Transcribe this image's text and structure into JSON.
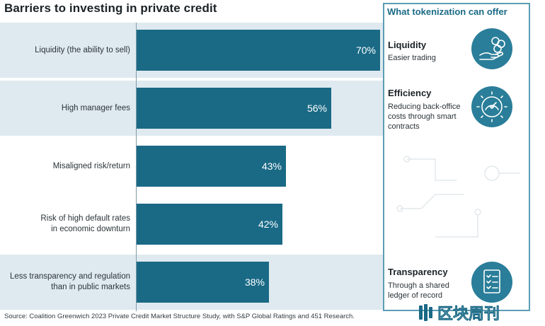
{
  "title": "Barriers to investing in private credit",
  "chart_data": {
    "type": "bar",
    "orientation": "horizontal",
    "title": "Barriers to investing in private credit",
    "categories": [
      [
        "Liquidity (the ability to sell)"
      ],
      [
        "High manager fees"
      ],
      [
        "Misaligned risk/return"
      ],
      [
        "Risk of high default rates",
        "in economic downturn"
      ],
      [
        "Less transparency and regulation",
        "than in public markets"
      ]
    ],
    "values": [
      70,
      56,
      43,
      42,
      38
    ],
    "value_labels": [
      "70%",
      "56%",
      "43%",
      "42%",
      "38%"
    ],
    "highlighted": [
      true,
      true,
      false,
      false,
      true
    ],
    "xlim": [
      0,
      70
    ],
    "grid": false,
    "bar_color": "#1a6a86",
    "band_color": "#dfeaf0"
  },
  "panel": {
    "title": "What tokenization can offer",
    "items": [
      {
        "heading": "Liquidity",
        "desc": [
          "Easier trading"
        ],
        "icon": "hand-coins-icon"
      },
      {
        "heading": "Efficiency",
        "desc": [
          "Reducing back-office",
          "costs through smart",
          "contracts"
        ],
        "icon": "gear-gauge-icon"
      },
      {
        "heading": "Transparency",
        "desc": [
          "Through a shared",
          "ledger of record"
        ],
        "icon": "checklist-icon"
      }
    ],
    "border_color": "#5b9db4"
  },
  "source": "Source: Coalition Greenwich 2023 Private Credit Market Structure Study, with S&P Global Ratings and 451 Research.",
  "watermark": "区块周刊"
}
